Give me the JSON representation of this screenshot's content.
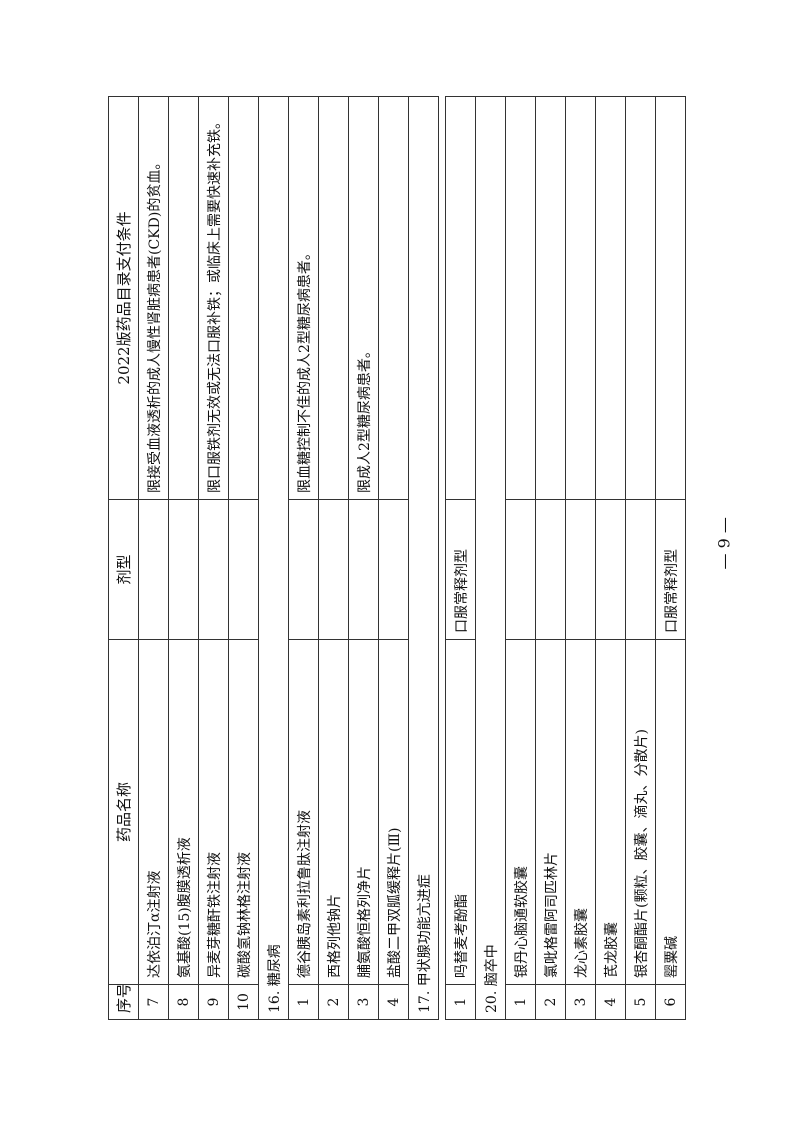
{
  "table": {
    "headers": [
      "序号",
      "药品名称",
      "剂型",
      "2022版药品目录支付条件"
    ],
    "part1": [
      {
        "type": "row",
        "no": "7",
        "name": "达依泊汀α注射液",
        "form": "",
        "condition": "限接受血液透析的成人慢性肾脏病患者(CKD)的贫血。"
      },
      {
        "type": "row",
        "no": "8",
        "name": "氨基酸(15)腹膜透析液",
        "form": "",
        "condition": ""
      },
      {
        "type": "row",
        "no": "9",
        "name": "异麦芽糖酐铁注射液",
        "form": "",
        "condition": "限口服铁剂无效或无法口服补铁；或临床上需要快速补充铁。"
      },
      {
        "type": "row",
        "no": "10",
        "name": "碳酸氢钠林格注射液",
        "form": "",
        "condition": ""
      },
      {
        "type": "cat",
        "label": "16. 糖尿病"
      },
      {
        "type": "row",
        "no": "1",
        "name": "德谷胰岛素利拉鲁肽注射液",
        "form": "",
        "condition": "限血糖控制不佳的成人2型糖尿病患者。"
      },
      {
        "type": "row",
        "no": "2",
        "name": "西格列他钠片",
        "form": "",
        "condition": ""
      },
      {
        "type": "row",
        "no": "3",
        "name": "脯氨酸恒格列净片",
        "form": "",
        "condition": "限成人2型糖尿病患者。"
      },
      {
        "type": "row",
        "no": "4",
        "name": "盐酸二甲双胍缓释片(Ⅲ)",
        "form": "",
        "condition": ""
      },
      {
        "type": "cat",
        "label": "17. 甲状腺功能亢进症"
      }
    ],
    "part2": [
      {
        "type": "row",
        "no": "1",
        "name": "吗替麦考酚酯",
        "form": "口服常释剂型",
        "condition": ""
      },
      {
        "type": "cat",
        "label": "20. 脑卒中"
      },
      {
        "type": "row",
        "no": "1",
        "name": "银丹心脑通软胶囊",
        "form": "",
        "condition": ""
      },
      {
        "type": "row",
        "no": "2",
        "name": "氯吡格雷阿司匹林片",
        "form": "",
        "condition": ""
      },
      {
        "type": "row",
        "no": "3",
        "name": "龙心素胶囊",
        "form": "",
        "condition": ""
      },
      {
        "type": "row",
        "no": "4",
        "name": "芪龙胶囊",
        "form": "",
        "condition": ""
      },
      {
        "type": "row",
        "no": "5",
        "name": "银杏酮酯片(颗粒、胶囊、滴丸、分散片)",
        "form": "",
        "condition": ""
      },
      {
        "type": "row",
        "no": "6",
        "name": "罂粟碱",
        "form": "口服常释剂型",
        "condition": ""
      }
    ]
  },
  "footer": {
    "page_number": "— 9 —"
  }
}
